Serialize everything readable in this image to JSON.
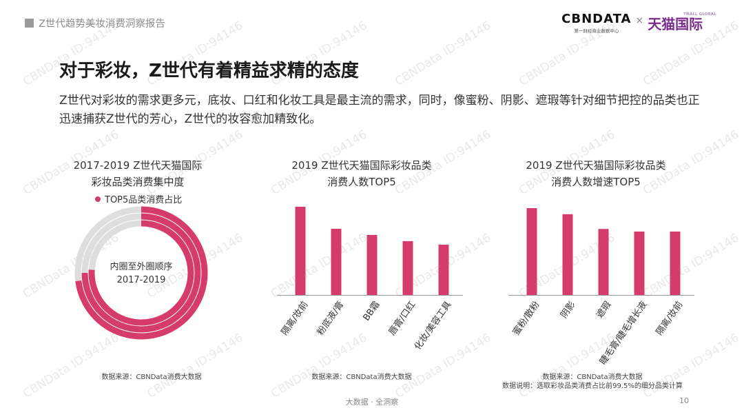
{
  "header": {
    "tag_text": "Z世代趋势美妆消费洞察报告"
  },
  "logo": {
    "cbndata": "CBNDATA",
    "cbndata_sub": "第一财经商业数据中心",
    "times": "×",
    "tmall_sup": "TMALL GLOBAL",
    "tmall": "天猫国际"
  },
  "title": "对于彩妆，Z世代有着精益求精的态度",
  "description": "Z世代对彩妆的需求更多元，底妆、口红和化妆工具是最主流的需求，同时，像蜜粉、阴影、遮瑕等针对细节把控的品类也正迅速捕获Z世代的芳心，Z世代的妆容愈加精致化。",
  "watermark": "CBNData ID:94146",
  "colors": {
    "accent": "#d63c6b",
    "track": "#dedede"
  },
  "chart_data": [
    {
      "type": "radial-bar",
      "title_line1": "2017-2019 Z世代天猫国际",
      "title_line2": "彩妆品类消费集中度",
      "legend": "TOP5品类消费占比",
      "center_line1": "内圈至外圈顺序",
      "center_line2": "2017-2019",
      "series": [
        {
          "name": "TOP5品类消费占比",
          "values": [
            0.76,
            0.75,
            0.73
          ]
        }
      ],
      "source": "数据来源：CBNData消费大数据"
    },
    {
      "type": "bar",
      "title_line1": "2019 Z世代天猫国际彩妆品类",
      "title_line2": "消费人数TOP5",
      "categories": [
        "隔离/妆前",
        "粉底液/膏",
        "BB霜",
        "唇膏/口红",
        "化妆/美容工具"
      ],
      "values": [
        100,
        75,
        68,
        61,
        57
      ],
      "ylim": [
        0,
        100
      ],
      "source": "数据来源：CBNData消费大数据"
    },
    {
      "type": "bar",
      "title_line1": "2019 Z世代天猫国际彩妆品类",
      "title_line2": "消费人数增速TOP5",
      "categories": [
        "蜜粉/散粉",
        "阴影",
        "遮瑕",
        "睫毛膏/睫毛增长液",
        "隔离/妆前"
      ],
      "values": [
        100,
        93,
        76,
        73,
        73
      ],
      "ylim": [
        0,
        100
      ],
      "source": "数据来源：CBNData消费大数据",
      "note": "数据说明：选取彩妆品类消费占比前99.5%的细分品类计算"
    }
  ],
  "footer": {
    "text": "大数据 · 全洞察",
    "page": "10"
  }
}
